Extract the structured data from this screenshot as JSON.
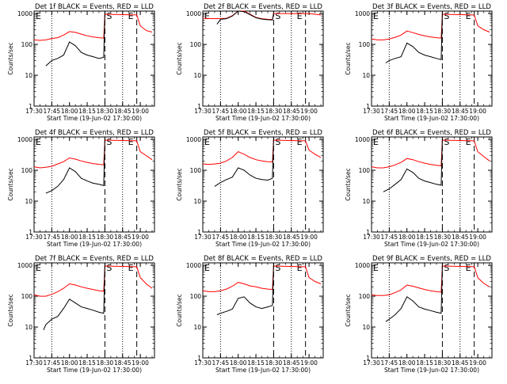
{
  "chart_data": [
    {
      "type": "line",
      "title": "Det 1f BLACK = Events, RED = LLD",
      "xlabel": "Start Time (19-Jun-02 17:30:00)",
      "ylabel": "Counts/sec",
      "x_ticks": [
        "17:30",
        "17:45",
        "18:00",
        "18:15",
        "18:30",
        "18:45",
        "19:00"
      ],
      "y_ticks": [
        "1",
        "10",
        "100",
        "1000"
      ],
      "ylim": [
        1,
        1200
      ],
      "scale": "log",
      "markers": {
        "S": "18:30",
        "E_left": "17:30",
        "E_right": "18:57"
      },
      "series": [
        {
          "color": "#ff0000",
          "x": [
            "17:30",
            "17:35",
            "17:40",
            "17:45",
            "17:50",
            "17:55",
            "18:00",
            "18:05",
            "18:10",
            "18:15",
            "18:20",
            "18:25",
            "18:29",
            "18:30",
            "18:57",
            "19:00",
            "19:05",
            "19:10"
          ],
          "y": [
            140,
            135,
            140,
            155,
            165,
            200,
            260,
            245,
            215,
            190,
            175,
            165,
            160,
            950,
            900,
            400,
            280,
            250
          ]
        },
        {
          "color": "#000000",
          "x": [
            "17:40",
            "17:45",
            "17:50",
            "17:55",
            "18:00",
            "18:05",
            "18:10",
            "18:15",
            "18:20",
            "18:25",
            "18:29",
            "18:30"
          ],
          "y": [
            20,
            30,
            35,
            45,
            120,
            90,
            55,
            45,
            40,
            35,
            38,
            1000
          ]
        }
      ]
    },
    {
      "type": "line",
      "title": "Det 2f BLACK = Events, RED = LLD",
      "xlabel": "Start Time (19-Jun-02 17:30:00)",
      "ylabel": "Counts/sec",
      "x_ticks": [
        "17:30",
        "17:45",
        "18:00",
        "18:15",
        "18:30",
        "18:45",
        "19:00"
      ],
      "y_ticks": [
        "1",
        "10",
        "100",
        "1000"
      ],
      "ylim": [
        1,
        1200
      ],
      "scale": "log",
      "markers": {
        "S": "18:30",
        "E_left": "17:30",
        "E_right": "18:57"
      },
      "series": [
        {
          "color": "#ff0000",
          "x": [
            "17:30",
            "17:40",
            "17:50",
            "17:55",
            "18:00",
            "18:05",
            "18:10",
            "18:15",
            "18:20",
            "18:25",
            "18:29",
            "18:30",
            "18:57",
            "19:00",
            "19:10"
          ],
          "y": [
            700,
            680,
            700,
            850,
            1300,
            1200,
            950,
            750,
            680,
            650,
            640,
            1000,
            1000,
            1000,
            900
          ]
        },
        {
          "color": "#000000",
          "x": [
            "17:42",
            "17:45",
            "17:50",
            "17:55",
            "18:00",
            "18:05",
            "18:10",
            "18:15",
            "18:20",
            "18:25",
            "18:29",
            "18:30"
          ],
          "y": [
            450,
            650,
            680,
            830,
            1250,
            1150,
            920,
            730,
            660,
            630,
            620,
            1000
          ]
        }
      ]
    },
    {
      "type": "line",
      "title": "Det 3f BLACK = Events, RED = LLD",
      "xlabel": "Start Time (19-Jun-02 17:30:00)",
      "ylabel": "Counts/sec",
      "x_ticks": [
        "17:30",
        "17:45",
        "18:00",
        "18:15",
        "18:30",
        "18:45",
        "19:00"
      ],
      "y_ticks": [
        "1",
        "10",
        "100",
        "1000"
      ],
      "ylim": [
        1,
        1200
      ],
      "scale": "log",
      "markers": {
        "S": "18:30",
        "E_left": "17:30",
        "E_right": "18:57"
      },
      "series": [
        {
          "color": "#ff0000",
          "x": [
            "17:30",
            "17:35",
            "17:40",
            "17:45",
            "17:50",
            "17:55",
            "18:00",
            "18:05",
            "18:10",
            "18:15",
            "18:20",
            "18:25",
            "18:29",
            "18:30",
            "18:57",
            "19:00",
            "19:05",
            "19:10"
          ],
          "y": [
            150,
            140,
            140,
            150,
            170,
            200,
            270,
            240,
            210,
            190,
            175,
            165,
            160,
            950,
            900,
            400,
            300,
            250
          ]
        },
        {
          "color": "#000000",
          "x": [
            "17:42",
            "17:45",
            "17:50",
            "17:55",
            "18:00",
            "18:05",
            "18:10",
            "18:15",
            "18:20",
            "18:25",
            "18:29",
            "18:30"
          ],
          "y": [
            25,
            30,
            35,
            40,
            110,
            85,
            55,
            45,
            40,
            35,
            32,
            1000
          ]
        }
      ]
    },
    {
      "type": "line",
      "title": "Det 4f BLACK = Events, RED = LLD",
      "xlabel": "Start Time (19-Jun-02 17:30:00)",
      "ylabel": "Counts/sec",
      "x_ticks": [
        "17:30",
        "17:45",
        "18:00",
        "18:15",
        "18:30",
        "18:45",
        "19:00"
      ],
      "y_ticks": [
        "1",
        "10",
        "100",
        "1000"
      ],
      "ylim": [
        1,
        1200
      ],
      "scale": "log",
      "markers": {
        "S": "18:30",
        "E_left": "17:30",
        "E_right": "18:57"
      },
      "series": [
        {
          "color": "#ff0000",
          "x": [
            "17:30",
            "17:35",
            "17:40",
            "17:45",
            "17:50",
            "17:55",
            "18:00",
            "18:05",
            "18:10",
            "18:15",
            "18:20",
            "18:25",
            "18:29",
            "18:30",
            "18:57",
            "19:00",
            "19:05",
            "19:10"
          ],
          "y": [
            130,
            120,
            125,
            135,
            160,
            190,
            250,
            230,
            200,
            180,
            165,
            155,
            150,
            950,
            900,
            400,
            300,
            220
          ]
        },
        {
          "color": "#000000",
          "x": [
            "17:40",
            "17:45",
            "17:50",
            "17:55",
            "18:00",
            "18:05",
            "18:10",
            "18:15",
            "18:20",
            "18:25",
            "18:29",
            "18:30"
          ],
          "y": [
            18,
            22,
            30,
            50,
            120,
            90,
            55,
            45,
            38,
            35,
            32,
            1000
          ]
        }
      ]
    },
    {
      "type": "line",
      "title": "Det 5f BLACK = Events, RED = LLD",
      "xlabel": "Start Time (19-Jun-02 17:30:00)",
      "ylabel": "Counts/sec",
      "x_ticks": [
        "17:30",
        "17:45",
        "18:00",
        "18:15",
        "18:30",
        "18:45",
        "19:00"
      ],
      "y_ticks": [
        "1",
        "10",
        "100",
        "1000"
      ],
      "ylim": [
        1,
        1200
      ],
      "scale": "log",
      "markers": {
        "S": "18:30",
        "E_left": "17:30",
        "E_right": "18:57"
      },
      "series": [
        {
          "color": "#ff0000",
          "x": [
            "17:30",
            "17:35",
            "17:40",
            "17:45",
            "17:50",
            "17:55",
            "18:00",
            "18:05",
            "18:10",
            "18:15",
            "18:20",
            "18:25",
            "18:29",
            "18:30",
            "18:57",
            "19:00",
            "19:05",
            "19:10"
          ],
          "y": [
            160,
            155,
            160,
            170,
            200,
            260,
            400,
            330,
            260,
            220,
            200,
            190,
            185,
            950,
            900,
            450,
            330,
            260
          ]
        },
        {
          "color": "#000000",
          "x": [
            "17:40",
            "17:45",
            "17:50",
            "17:55",
            "18:00",
            "18:05",
            "18:10",
            "18:15",
            "18:20",
            "18:25",
            "18:29",
            "18:30"
          ],
          "y": [
            30,
            40,
            50,
            60,
            120,
            100,
            70,
            55,
            50,
            48,
            55,
            1000
          ]
        }
      ]
    },
    {
      "type": "line",
      "title": "Det 6f BLACK = Events, RED = LLD",
      "xlabel": "Start Time (19-Jun-02 17:30:00)",
      "ylabel": "Counts/sec",
      "x_ticks": [
        "17:30",
        "17:45",
        "18:00",
        "18:15",
        "18:30",
        "18:45",
        "19:00"
      ],
      "y_ticks": [
        "1",
        "10",
        "100",
        "1000"
      ],
      "ylim": [
        1,
        1200
      ],
      "scale": "log",
      "markers": {
        "S": "18:30",
        "E_left": "17:30",
        "E_right": "18:57"
      },
      "series": [
        {
          "color": "#ff0000",
          "x": [
            "17:30",
            "17:35",
            "17:40",
            "17:45",
            "17:50",
            "17:55",
            "18:00",
            "18:05",
            "18:10",
            "18:15",
            "18:20",
            "18:25",
            "18:29",
            "18:30",
            "18:57",
            "19:00",
            "19:05",
            "19:10"
          ],
          "y": [
            130,
            120,
            120,
            130,
            150,
            180,
            240,
            220,
            190,
            170,
            155,
            145,
            140,
            950,
            900,
            400,
            280,
            200
          ]
        },
        {
          "color": "#000000",
          "x": [
            "17:40",
            "17:45",
            "17:50",
            "17:55",
            "18:00",
            "18:05",
            "18:10",
            "18:15",
            "18:20",
            "18:25",
            "18:29",
            "18:30"
          ],
          "y": [
            20,
            25,
            35,
            50,
            110,
            85,
            55,
            45,
            40,
            35,
            33,
            1000
          ]
        }
      ]
    },
    {
      "type": "line",
      "title": "Det 7f BLACK = Events, RED = LLD",
      "xlabel": "Start Time (19-Jun-02 17:30:00)",
      "ylabel": "Counts/sec",
      "x_ticks": [
        "17:30",
        "17:45",
        "18:00",
        "18:15",
        "18:30",
        "18:45",
        "19:00"
      ],
      "y_ticks": [
        "1",
        "10",
        "100",
        "1000"
      ],
      "ylim": [
        1,
        1200
      ],
      "scale": "log",
      "markers": {
        "S": "18:30",
        "E_left": "17:30",
        "E_right": "18:57"
      },
      "series": [
        {
          "color": "#ff0000",
          "x": [
            "17:30",
            "17:35",
            "17:40",
            "17:45",
            "17:50",
            "17:55",
            "18:00",
            "18:05",
            "18:10",
            "18:15",
            "18:20",
            "18:25",
            "18:29",
            "18:30",
            "18:57",
            "19:00",
            "19:05",
            "19:10"
          ],
          "y": [
            110,
            100,
            100,
            115,
            140,
            180,
            250,
            230,
            200,
            180,
            165,
            150,
            145,
            950,
            900,
            400,
            250,
            180
          ]
        },
        {
          "color": "#000000",
          "x": [
            "17:38",
            "17:40",
            "17:45",
            "17:50",
            "17:55",
            "18:00",
            "18:05",
            "18:10",
            "18:15",
            "18:20",
            "18:25",
            "18:29",
            "18:30"
          ],
          "y": [
            8,
            12,
            18,
            22,
            40,
            80,
            60,
            45,
            40,
            35,
            30,
            28,
            1000
          ]
        }
      ]
    },
    {
      "type": "line",
      "title": "Det 8f BLACK = Events, RED = LLD",
      "xlabel": "Start Time (19-Jun-02 17:30:00)",
      "ylabel": "Counts/sec",
      "x_ticks": [
        "17:30",
        "17:45",
        "18:00",
        "18:15",
        "18:30",
        "18:45",
        "19:00"
      ],
      "y_ticks": [
        "1",
        "10",
        "100",
        "1000"
      ],
      "ylim": [
        1,
        1200
      ],
      "scale": "log",
      "markers": {
        "S": "18:30",
        "E_left": "17:30",
        "E_right": "18:57"
      },
      "series": [
        {
          "color": "#ff0000",
          "x": [
            "17:30",
            "17:35",
            "17:40",
            "17:45",
            "17:50",
            "17:55",
            "18:00",
            "18:05",
            "18:10",
            "18:15",
            "18:20",
            "18:25",
            "18:29",
            "18:30",
            "18:57",
            "19:00",
            "19:05",
            "19:10"
          ],
          "y": [
            150,
            140,
            140,
            150,
            170,
            210,
            280,
            250,
            215,
            200,
            180,
            170,
            165,
            950,
            900,
            400,
            300,
            250
          ]
        },
        {
          "color": "#000000",
          "x": [
            "17:42",
            "17:45",
            "17:50",
            "17:55",
            "18:00",
            "18:05",
            "18:10",
            "18:15",
            "18:20",
            "18:25",
            "18:29",
            "18:30"
          ],
          "y": [
            25,
            28,
            32,
            38,
            85,
            95,
            60,
            45,
            40,
            45,
            50,
            1000
          ]
        }
      ]
    },
    {
      "type": "line",
      "title": "Det 9f BLACK = Events, RED = LLD",
      "xlabel": "Start Time (19-Jun-02 17:30:00)",
      "ylabel": "Counts/sec",
      "x_ticks": [
        "17:30",
        "17:45",
        "18:00",
        "18:15",
        "18:30",
        "18:45",
        "19:00"
      ],
      "y_ticks": [
        "1",
        "10",
        "100",
        "1000"
      ],
      "ylim": [
        1,
        1200
      ],
      "scale": "log",
      "markers": {
        "S": "18:30",
        "E_left": "17:30",
        "E_right": "18:57"
      },
      "series": [
        {
          "color": "#ff0000",
          "x": [
            "17:30",
            "17:35",
            "17:40",
            "17:45",
            "17:50",
            "17:55",
            "18:00",
            "18:05",
            "18:10",
            "18:15",
            "18:20",
            "18:25",
            "18:29",
            "18:30",
            "18:57",
            "19:00",
            "19:05",
            "19:10"
          ],
          "y": [
            110,
            105,
            105,
            110,
            130,
            160,
            230,
            210,
            185,
            165,
            150,
            140,
            135,
            950,
            900,
            400,
            260,
            200
          ]
        },
        {
          "color": "#000000",
          "x": [
            "17:42",
            "17:45",
            "17:50",
            "17:55",
            "18:00",
            "18:05",
            "18:10",
            "18:15",
            "18:20",
            "18:25",
            "18:29",
            "18:30"
          ],
          "y": [
            15,
            18,
            25,
            40,
            95,
            70,
            45,
            38,
            34,
            30,
            28,
            1000
          ]
        }
      ]
    }
  ]
}
